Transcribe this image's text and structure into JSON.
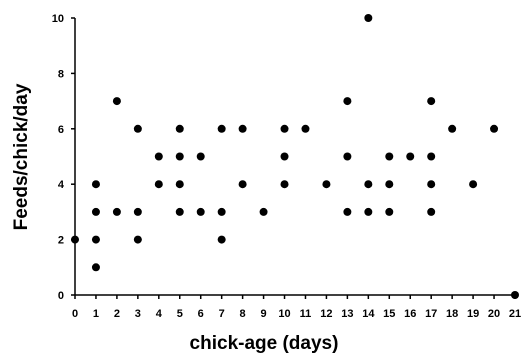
{
  "chart_data": {
    "type": "scatter",
    "title": "",
    "xlabel": "chick-age (days)",
    "ylabel": "Feeds/chick/day",
    "xlim": [
      0,
      21
    ],
    "ylim": [
      0,
      10
    ],
    "x_ticks": [
      0,
      1,
      2,
      3,
      4,
      5,
      6,
      7,
      8,
      9,
      10,
      11,
      12,
      13,
      14,
      15,
      16,
      17,
      18,
      19,
      20,
      21
    ],
    "y_ticks": [
      0,
      2,
      4,
      6,
      8,
      10
    ],
    "grid": false,
    "legend": "none",
    "marker_color": "#000000",
    "points": [
      {
        "x": 0,
        "y": 2
      },
      {
        "x": 1,
        "y": 1
      },
      {
        "x": 1,
        "y": 2
      },
      {
        "x": 1,
        "y": 3
      },
      {
        "x": 1,
        "y": 4
      },
      {
        "x": 2,
        "y": 3
      },
      {
        "x": 2,
        "y": 7
      },
      {
        "x": 3,
        "y": 2
      },
      {
        "x": 3,
        "y": 3
      },
      {
        "x": 3,
        "y": 6
      },
      {
        "x": 4,
        "y": 4
      },
      {
        "x": 4,
        "y": 5
      },
      {
        "x": 5,
        "y": 3
      },
      {
        "x": 5,
        "y": 4
      },
      {
        "x": 5,
        "y": 5
      },
      {
        "x": 5,
        "y": 6
      },
      {
        "x": 6,
        "y": 3
      },
      {
        "x": 6,
        "y": 5
      },
      {
        "x": 7,
        "y": 2
      },
      {
        "x": 7,
        "y": 3
      },
      {
        "x": 7,
        "y": 6
      },
      {
        "x": 8,
        "y": 4
      },
      {
        "x": 8,
        "y": 6
      },
      {
        "x": 9,
        "y": 3
      },
      {
        "x": 10,
        "y": 4
      },
      {
        "x": 10,
        "y": 5
      },
      {
        "x": 10,
        "y": 6
      },
      {
        "x": 11,
        "y": 6
      },
      {
        "x": 12,
        "y": 4
      },
      {
        "x": 13,
        "y": 3
      },
      {
        "x": 13,
        "y": 5
      },
      {
        "x": 13,
        "y": 7
      },
      {
        "x": 14,
        "y": 3
      },
      {
        "x": 14,
        "y": 4
      },
      {
        "x": 14,
        "y": 10
      },
      {
        "x": 15,
        "y": 3
      },
      {
        "x": 15,
        "y": 4
      },
      {
        "x": 15,
        "y": 5
      },
      {
        "x": 16,
        "y": 5
      },
      {
        "x": 17,
        "y": 3
      },
      {
        "x": 17,
        "y": 4
      },
      {
        "x": 17,
        "y": 5
      },
      {
        "x": 17,
        "y": 7
      },
      {
        "x": 18,
        "y": 6
      },
      {
        "x": 19,
        "y": 4
      },
      {
        "x": 20,
        "y": 6
      },
      {
        "x": 21,
        "y": 0
      }
    ]
  }
}
